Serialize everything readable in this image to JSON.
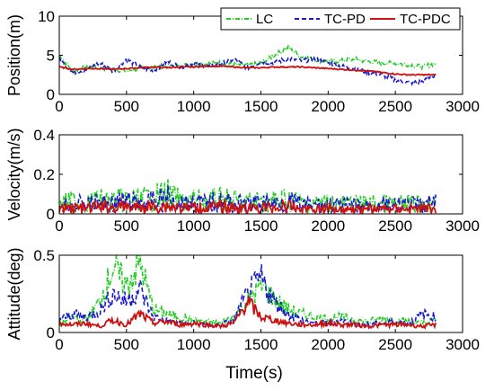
{
  "figure": {
    "xlabel": "Time(s)"
  },
  "colors": {
    "LC": "#22cc22",
    "TC-PD": "#1a1acc",
    "TC-PDC": "#cc1111"
  },
  "legend": {
    "placement": "top-right",
    "entries": [
      "LC",
      "TC-PD",
      "TC-PDC"
    ]
  },
  "chart_data": [
    {
      "type": "line",
      "ylabel": "Position(m)",
      "xlim": [
        0,
        3000
      ],
      "ylim": [
        0,
        10
      ],
      "xticks": [
        "0",
        "500",
        "1000",
        "1500",
        "2000",
        "2500",
        "3000"
      ],
      "yticks": [
        "0",
        "5",
        "10"
      ],
      "x": [
        0,
        100,
        200,
        300,
        400,
        500,
        600,
        700,
        800,
        900,
        1000,
        1100,
        1200,
        1300,
        1400,
        1500,
        1600,
        1700,
        1800,
        1900,
        2000,
        2100,
        2200,
        2300,
        2400,
        2500,
        2600,
        2700,
        2800
      ],
      "series": [
        {
          "name": "LC",
          "values": [
            5.0,
            3.0,
            3.5,
            3.4,
            3.2,
            3.0,
            3.3,
            3.5,
            3.6,
            3.7,
            3.8,
            3.9,
            4.0,
            3.8,
            3.7,
            4.0,
            5.0,
            6.0,
            4.8,
            4.5,
            4.2,
            4.3,
            4.5,
            4.2,
            4.0,
            4.0,
            3.8,
            3.5,
            4.0
          ]
        },
        {
          "name": "TC-PD",
          "values": [
            4.5,
            2.8,
            3.2,
            4.0,
            3.0,
            4.5,
            3.5,
            3.0,
            4.2,
            3.5,
            4.0,
            3.6,
            3.9,
            4.5,
            3.4,
            4.2,
            4.0,
            4.6,
            4.3,
            4.5,
            4.0,
            3.6,
            3.3,
            2.8,
            2.5,
            1.8,
            1.5,
            1.6,
            2.5
          ]
        },
        {
          "name": "TC-PDC",
          "values": [
            3.5,
            3.2,
            3.3,
            3.3,
            3.2,
            3.3,
            3.4,
            3.5,
            3.4,
            3.5,
            3.5,
            3.6,
            3.6,
            3.5,
            3.4,
            3.4,
            3.5,
            3.5,
            3.5,
            3.4,
            3.3,
            3.2,
            3.1,
            3.0,
            2.8,
            2.6,
            2.5,
            2.5,
            2.5
          ]
        }
      ],
      "x_end": 2800
    },
    {
      "type": "line",
      "ylabel": "Velocity(m/s)",
      "xlim": [
        0,
        3000
      ],
      "ylim": [
        0,
        0.4
      ],
      "xticks": [
        "0",
        "500",
        "1000",
        "1500",
        "2000",
        "2500",
        "3000"
      ],
      "yticks": [
        "0",
        "0.2",
        "0.4"
      ],
      "x": [
        0,
        100,
        200,
        300,
        400,
        500,
        600,
        700,
        800,
        900,
        1000,
        1100,
        1200,
        1300,
        1400,
        1500,
        1600,
        1700,
        1800,
        1900,
        2000,
        2100,
        2200,
        2300,
        2400,
        2500,
        2600,
        2700,
        2800
      ],
      "series": [
        {
          "name": "LC",
          "values": [
            0.1,
            0.12,
            0.11,
            0.13,
            0.12,
            0.14,
            0.13,
            0.15,
            0.18,
            0.12,
            0.13,
            0.12,
            0.14,
            0.12,
            0.11,
            0.13,
            0.12,
            0.14,
            0.11,
            0.1,
            0.11,
            0.1,
            0.09,
            0.1,
            0.1,
            0.09,
            0.1,
            0.09,
            0.1
          ]
        },
        {
          "name": "TC-PD",
          "values": [
            0.08,
            0.1,
            0.09,
            0.11,
            0.1,
            0.12,
            0.11,
            0.12,
            0.15,
            0.1,
            0.11,
            0.1,
            0.12,
            0.1,
            0.09,
            0.11,
            0.1,
            0.12,
            0.09,
            0.08,
            0.09,
            0.08,
            0.08,
            0.08,
            0.09,
            0.08,
            0.09,
            0.08,
            0.11
          ]
        },
        {
          "name": "TC-PDC",
          "values": [
            0.05,
            0.06,
            0.05,
            0.07,
            0.06,
            0.07,
            0.06,
            0.07,
            0.08,
            0.06,
            0.06,
            0.06,
            0.07,
            0.06,
            0.05,
            0.06,
            0.06,
            0.07,
            0.05,
            0.05,
            0.05,
            0.05,
            0.05,
            0.05,
            0.05,
            0.05,
            0.05,
            0.05,
            0.06
          ]
        }
      ],
      "x_end": 2800
    },
    {
      "type": "line",
      "ylabel": "Attitude(deg)",
      "xlim": [
        0,
        3000
      ],
      "ylim": [
        0,
        0.5
      ],
      "xticks": [
        "0",
        "500",
        "1000",
        "1500",
        "2000",
        "2500",
        "3000"
      ],
      "yticks": [
        "0",
        "0.5"
      ],
      "x": [
        0,
        100,
        200,
        300,
        400,
        500,
        600,
        700,
        800,
        900,
        1000,
        1100,
        1200,
        1300,
        1400,
        1500,
        1600,
        1700,
        1800,
        1900,
        2000,
        2100,
        2200,
        2300,
        2400,
        2500,
        2600,
        2700,
        2800
      ],
      "series": [
        {
          "name": "LC",
          "values": [
            0.05,
            0.1,
            0.08,
            0.2,
            0.42,
            0.3,
            0.45,
            0.15,
            0.12,
            0.1,
            0.08,
            0.07,
            0.06,
            0.1,
            0.2,
            0.3,
            0.22,
            0.15,
            0.12,
            0.1,
            0.09,
            0.1,
            0.08,
            0.07,
            0.09,
            0.08,
            0.07,
            0.06,
            0.08
          ]
        },
        {
          "name": "TC-PD",
          "values": [
            0.08,
            0.12,
            0.1,
            0.14,
            0.25,
            0.2,
            0.28,
            0.1,
            0.08,
            0.06,
            0.06,
            0.05,
            0.05,
            0.08,
            0.25,
            0.35,
            0.2,
            0.12,
            0.08,
            0.06,
            0.06,
            0.08,
            0.05,
            0.05,
            0.06,
            0.07,
            0.06,
            0.12,
            0.1
          ]
        },
        {
          "name": "TC-PDC",
          "values": [
            0.06,
            0.05,
            0.06,
            0.04,
            0.08,
            0.05,
            0.12,
            0.06,
            0.07,
            0.05,
            0.06,
            0.05,
            0.04,
            0.06,
            0.2,
            0.1,
            0.08,
            0.06,
            0.05,
            0.05,
            0.06,
            0.05,
            0.05,
            0.04,
            0.05,
            0.05,
            0.05,
            0.04,
            0.05
          ]
        }
      ],
      "x_end": 2800
    }
  ]
}
